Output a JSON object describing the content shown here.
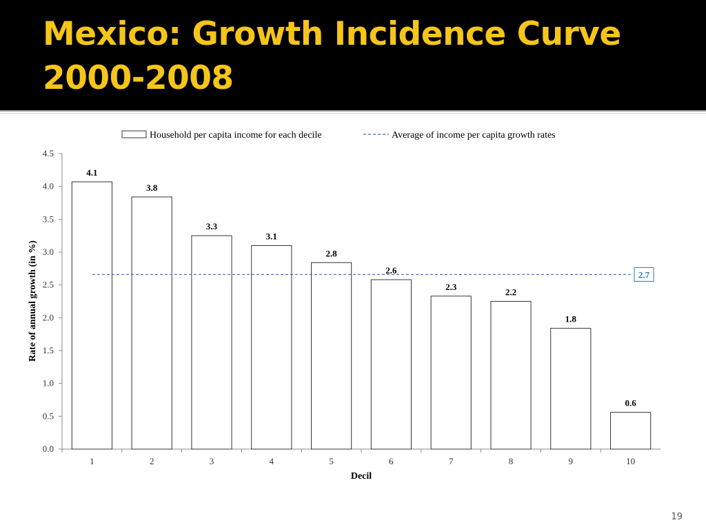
{
  "slide": {
    "title_line1": "Mexico: Growth Incidence Curve",
    "title_line2": "2000-2008",
    "page_number": "19"
  },
  "colors": {
    "title_background": "#000000",
    "title_text": "#f5c518",
    "bar_fill": "#ffffff",
    "bar_stroke": "#333333",
    "average_line": "#2e75b6"
  },
  "chart_data": {
    "type": "bar",
    "xlabel": "Decil",
    "ylabel": "Rate of annual growth (in %)",
    "categories": [
      "1",
      "2",
      "3",
      "4",
      "5",
      "6",
      "7",
      "8",
      "9",
      "10"
    ],
    "series": [
      {
        "name": "Household per capita income for each decile",
        "values": [
          4.07,
          3.84,
          3.25,
          3.1,
          2.84,
          2.58,
          2.33,
          2.25,
          1.84,
          0.56
        ],
        "labels": [
          "4.1",
          "3.8",
          "3.3",
          "3.1",
          "2.8",
          "2.6",
          "2.3",
          "2.2",
          "1.8",
          "0.6"
        ]
      }
    ],
    "reference_line": {
      "name": "Average of income per capita growth rates",
      "value": 2.66,
      "label": "2.7",
      "style": "dashed"
    },
    "ylim": [
      0,
      4.5
    ],
    "yticks": [
      "0.0",
      "0.5",
      "1.0",
      "1.5",
      "2.0",
      "2.5",
      "3.0",
      "3.5",
      "4.0",
      "4.5"
    ],
    "grid": false,
    "legend_position": "top"
  }
}
